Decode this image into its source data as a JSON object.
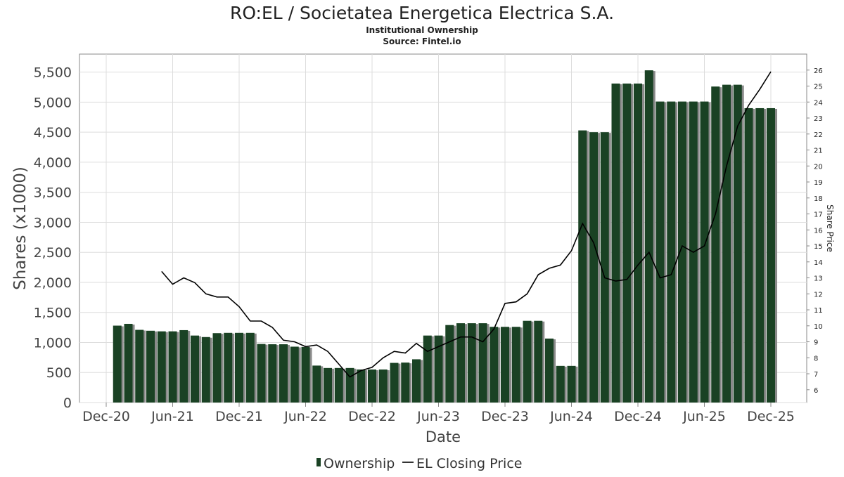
{
  "chart_data": {
    "type": "bar",
    "title": "RO:EL / Societatea Energetica Electrica S.A.",
    "subtitle": "Institutional Ownership",
    "source": "Source: Fintel.io",
    "xlabel": "Date",
    "ylabel": "Shares (x1000)",
    "y2label": "Share Price",
    "ylim": [
      0,
      5800
    ],
    "y2lim": [
      5.2,
      27.0
    ],
    "yticks": [
      0,
      500,
      1000,
      1500,
      2000,
      2500,
      3000,
      3500,
      4000,
      4500,
      5000,
      5500
    ],
    "ytick_labels": [
      "0",
      "500",
      "1,000",
      "1,500",
      "2,000",
      "2,500",
      "3,000",
      "3,500",
      "4,000",
      "4,500",
      "5,000",
      "5,500"
    ],
    "y2ticks": [
      6,
      7,
      8,
      9,
      10,
      11,
      12,
      13,
      14,
      15,
      16,
      17,
      18,
      19,
      20,
      21,
      22,
      23,
      24,
      25,
      26
    ],
    "xticks": [
      "Dec-20",
      "Jun-21",
      "Dec-21",
      "Jun-22",
      "Dec-22",
      "Jun-23",
      "Dec-23",
      "Jun-24",
      "Dec-24",
      "Jun-25",
      "Dec-25"
    ],
    "grid": true,
    "legend_position": "bottom",
    "colors": {
      "bar": "#1a4224",
      "shadow": "#8a8a8a",
      "line": "#000000"
    },
    "series": [
      {
        "name": "Ownership",
        "type": "bar",
        "start": "2021-01",
        "frequency": "monthly",
        "values": [
          1280,
          1310,
          1210,
          1195,
          1185,
          1185,
          1205,
          1115,
          1090,
          1155,
          1160,
          1160,
          1160,
          975,
          970,
          970,
          930,
          925,
          615,
          575,
          575,
          575,
          550,
          550,
          550,
          660,
          665,
          720,
          1115,
          1115,
          1290,
          1320,
          1320,
          1320,
          1260,
          1260,
          1260,
          1360,
          1360,
          1065,
          610,
          610,
          4530,
          4500,
          4500,
          5310,
          5310,
          5310,
          5530,
          5010,
          5010,
          5010,
          5010,
          5010,
          5260,
          5290,
          5290,
          4900,
          4900,
          4900
        ]
      },
      {
        "name": "EL Closing Price",
        "type": "line",
        "axis": "right",
        "start": "2021-05",
        "frequency": "monthly",
        "values": [
          13.4,
          12.6,
          13.0,
          12.7,
          12.0,
          11.8,
          11.8,
          11.2,
          10.3,
          10.3,
          9.9,
          9.1,
          9.0,
          8.7,
          8.8,
          8.4,
          7.6,
          6.8,
          7.2,
          7.4,
          8.0,
          8.4,
          8.3,
          8.9,
          8.4,
          8.7,
          9.0,
          9.3,
          9.3,
          9.0,
          9.8,
          11.4,
          11.5,
          12.0,
          13.2,
          13.6,
          13.8,
          14.7,
          16.4,
          15.2,
          13.0,
          12.8,
          12.9,
          13.8,
          14.6,
          13.0,
          13.2,
          15.0,
          14.6,
          15.0,
          17.0,
          20.0,
          22.5,
          23.8,
          24.8,
          25.9
        ]
      }
    ]
  }
}
